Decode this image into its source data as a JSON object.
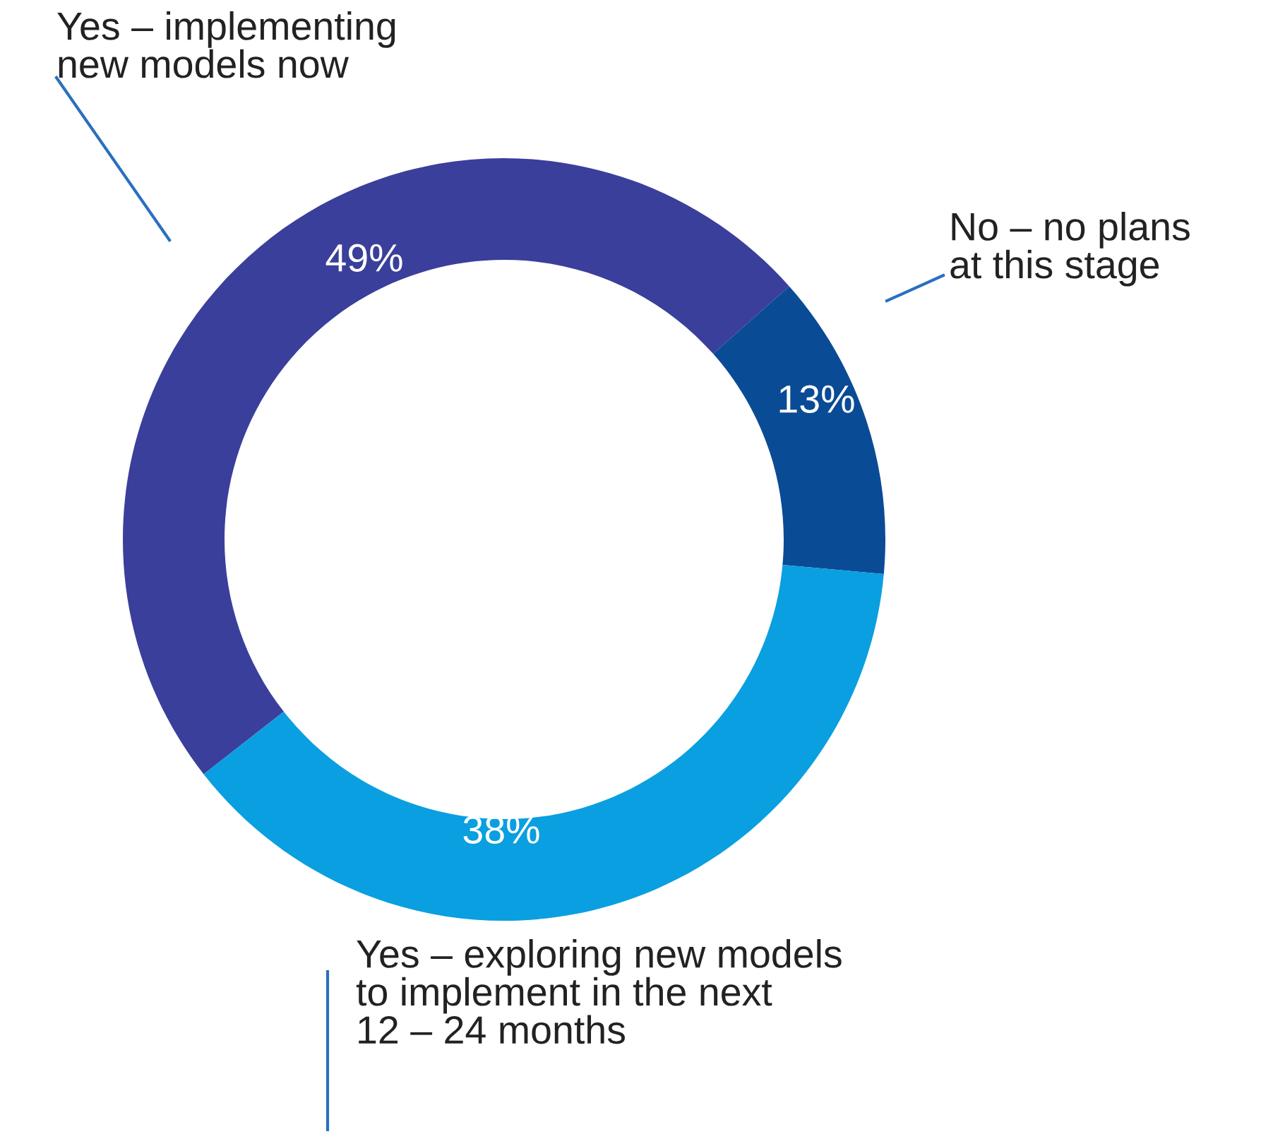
{
  "chart_data": {
    "type": "donut",
    "categories": [
      "Yes – implementing new models now",
      "No – no plans at this stage",
      "Yes – exploring new models to implement in the next 12 – 24 months"
    ],
    "values": [
      49,
      13,
      38
    ],
    "colors": [
      "#3a3f9b",
      "#0a4b96",
      "#0a9fe0"
    ],
    "value_labels": [
      "49%",
      "13%",
      "38%"
    ]
  }
}
